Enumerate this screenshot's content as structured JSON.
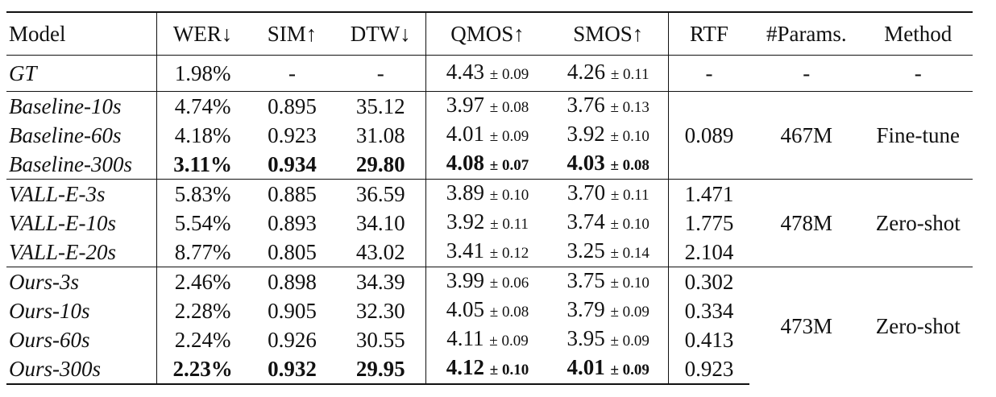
{
  "headers": {
    "model": "Model",
    "wer": "WER↓",
    "sim": "SIM↑",
    "dtw": "DTW↓",
    "qmos": "QMOS↑",
    "smos": "SMOS↑",
    "rtf": "RTF",
    "params": "#Params.",
    "method": "Method"
  },
  "gt": {
    "model": "GT",
    "wer": "1.98%",
    "sim": "-",
    "dtw": "-",
    "qmos": "4.43",
    "qmos_pm": "± 0.09",
    "smos": "4.26",
    "smos_pm": "± 0.11",
    "rtf": "-",
    "params": "-",
    "method": "-"
  },
  "groups": [
    {
      "rtf_shared": "0.089",
      "params": "467M",
      "method": "Fine-tune",
      "rows": [
        {
          "model": "Baseline-10s",
          "wer": "4.74%",
          "sim": "0.895",
          "dtw": "35.12",
          "qmos": "3.97",
          "qmos_pm": "± 0.08",
          "smos": "3.76",
          "smos_pm": "± 0.13"
        },
        {
          "model": "Baseline-60s",
          "wer": "4.18%",
          "sim": "0.923",
          "dtw": "31.08",
          "qmos": "4.01",
          "qmos_pm": "± 0.09",
          "smos": "3.92",
          "smos_pm": "± 0.10"
        },
        {
          "model": "Baseline-300s",
          "wer": "3.11%",
          "sim": "0.934",
          "dtw": "29.80",
          "qmos": "4.08",
          "qmos_pm": "± 0.07",
          "smos": "4.03",
          "smos_pm": "± 0.08"
        }
      ]
    },
    {
      "params": "478M",
      "method": "Zero-shot",
      "rows": [
        {
          "model": "VALL-E-3s",
          "wer": "5.83%",
          "sim": "0.885",
          "dtw": "36.59",
          "qmos": "3.89",
          "qmos_pm": "± 0.10",
          "smos": "3.70",
          "smos_pm": "± 0.11",
          "rtf": "1.471"
        },
        {
          "model": "VALL-E-10s",
          "wer": "5.54%",
          "sim": "0.893",
          "dtw": "34.10",
          "qmos": "3.92",
          "qmos_pm": "± 0.11",
          "smos": "3.74",
          "smos_pm": "± 0.10",
          "rtf": "1.775"
        },
        {
          "model": "VALL-E-20s",
          "wer": "8.77%",
          "sim": "0.805",
          "dtw": "43.02",
          "qmos": "3.41",
          "qmos_pm": "± 0.12",
          "smos": "3.25",
          "smos_pm": "± 0.14",
          "rtf": "2.104"
        }
      ]
    },
    {
      "params": "473M",
      "method": "Zero-shot",
      "rows": [
        {
          "model": "Ours-3s",
          "wer": "2.46%",
          "sim": "0.898",
          "dtw": "34.39",
          "qmos": "3.99",
          "qmos_pm": "± 0.06",
          "smos": "3.75",
          "smos_pm": "± 0.10",
          "rtf": "0.302"
        },
        {
          "model": "Ours-10s",
          "wer": "2.28%",
          "sim": "0.905",
          "dtw": "32.30",
          "qmos": "4.05",
          "qmos_pm": "± 0.08",
          "smos": "3.79",
          "smos_pm": "± 0.09",
          "rtf": "0.334"
        },
        {
          "model": "Ours-60s",
          "wer": "2.24%",
          "sim": "0.926",
          "dtw": "30.55",
          "qmos": "4.11",
          "qmos_pm": "± 0.09",
          "smos": "3.95",
          "smos_pm": "± 0.09",
          "rtf": "0.413"
        },
        {
          "model": "Ours-300s",
          "wer": "2.23%",
          "sim": "0.932",
          "dtw": "29.95",
          "qmos": "4.12",
          "qmos_pm": "± 0.10",
          "smos": "4.01",
          "smos_pm": "± 0.09",
          "rtf": "0.923"
        }
      ]
    }
  ]
}
